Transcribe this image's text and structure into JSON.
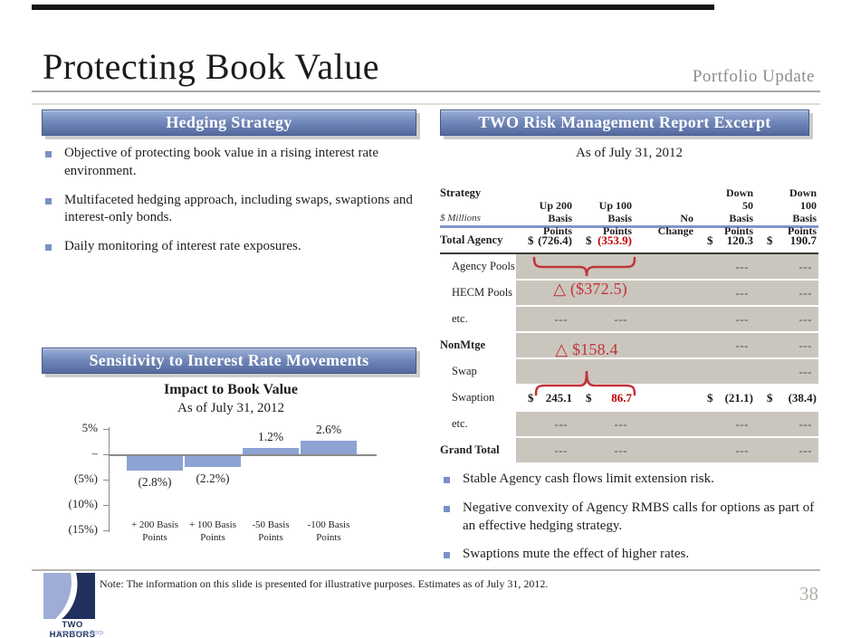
{
  "header": {
    "title": "Protecting Book Value",
    "subtitle": "Portfolio Update",
    "page_number": "38"
  },
  "left_panel": {
    "banner": "Hedging Strategy",
    "bullets": [
      "Objective of protecting book value in a rising interest rate environment.",
      "Multifaceted hedging approach, including swaps, swaptions and interest-only bonds.",
      "Daily monitoring of interest rate exposures."
    ],
    "chart_banner": "Sensitivity to Interest Rate Movements"
  },
  "chart_data": {
    "type": "bar",
    "title": "Impact to Book Value",
    "subtitle": "As of July 31, 2012",
    "categories": [
      "+ 200 Basis\nPoints",
      "+ 100 Basis\nPoints",
      "-50 Basis\nPoints",
      "-100 Basis\nPoints"
    ],
    "values": [
      -2.8,
      -2.2,
      1.2,
      2.6
    ],
    "value_labels": [
      "(2.8%)",
      "(2.2%)",
      "1.2%",
      "2.6%"
    ],
    "ytick_labels": [
      "5%",
      "–",
      "(5%)",
      "(10%)",
      "(15%)"
    ],
    "ytick_values": [
      5,
      0,
      -5,
      -10,
      -15
    ],
    "ylim": [
      -15,
      5
    ],
    "xlabel": "",
    "ylabel": "",
    "grid": false,
    "legend": false,
    "bar_color": "#8da3d3"
  },
  "right_panel": {
    "banner": "TWO Risk Management Report Excerpt",
    "as_of": "As of July 31, 2012",
    "table": {
      "corner_title": "Strategy",
      "corner_subtitle": "$ Millions",
      "columns": [
        "Up 200\nBasis\nPoints",
        "Up 100\nBasis\nPoints",
        "No\nChange",
        "Down\n50\nBasis\nPoints",
        "Down\n100\nBasis\nPoints"
      ],
      "rows": [
        {
          "label": "Total Agency",
          "style": "bold",
          "shaded": false,
          "dark_underline": true,
          "cells": [
            {
              "d": "$",
              "v": "(726.4)"
            },
            {
              "d": "$",
              "v": "(353.9)",
              "red": true
            },
            {},
            {
              "d": "$",
              "v": "120.3"
            },
            {
              "d": "$",
              "v": "190.7"
            }
          ]
        },
        {
          "label": "Agency Pools",
          "style": "indent",
          "shaded": true,
          "cells": [
            {},
            {},
            {},
            {
              "v": "---"
            },
            {
              "v": "---"
            }
          ]
        },
        {
          "label": "HECM Pools",
          "style": "indent",
          "shaded": true,
          "cells": [
            {},
            {},
            {},
            {
              "v": "---"
            },
            {
              "v": "---"
            }
          ]
        },
        {
          "label": "etc.",
          "style": "indent",
          "shaded": true,
          "cells": [
            {
              "v": "---"
            },
            {
              "v": "---"
            },
            {},
            {
              "v": "---"
            },
            {
              "v": "---"
            }
          ]
        },
        {
          "label": "NonMtge",
          "style": "bold",
          "shaded": true,
          "cells": [
            {},
            {},
            {},
            {
              "v": "---"
            },
            {
              "v": "---"
            }
          ]
        },
        {
          "label": "Swap",
          "style": "indent",
          "shaded": true,
          "cells": [
            {},
            {},
            {},
            {},
            {
              "v": "---"
            }
          ]
        },
        {
          "label": "Swaption",
          "style": "indent",
          "shaded": false,
          "cells": [
            {
              "d": "$",
              "v": "245.1"
            },
            {
              "d": "$",
              "v": "86.7",
              "red": true
            },
            {},
            {
              "d": "$",
              "v": "(21.1)"
            },
            {
              "d": "$",
              "v": "(38.4)"
            }
          ]
        },
        {
          "label": "etc.",
          "style": "indent",
          "shaded": true,
          "cells": [
            {
              "v": "---"
            },
            {
              "v": "---"
            },
            {},
            {
              "v": "---"
            },
            {
              "v": "---"
            }
          ]
        },
        {
          "label": "Grand Total",
          "style": "bold",
          "shaded": true,
          "cells": [
            {
              "v": "---"
            },
            {
              "v": "---"
            },
            {},
            {
              "v": "---"
            },
            {
              "v": "---"
            }
          ]
        }
      ]
    },
    "annotations": [
      {
        "text": "△ ($372.5)"
      },
      {
        "text": "△ $158.4"
      }
    ],
    "bullets": [
      "Stable Agency cash flows limit extension risk.",
      "Negative convexity of Agency RMBS calls for options as part of an effective hedging strategy.",
      "Swaptions mute the effect of higher rates."
    ]
  },
  "footer": {
    "note": "Note:  The information on this slide is presented for illustrative purposes. Estimates as of July 31, 2012.",
    "logo_name": "TWO HARBORS",
    "logo_subtitle": "Investment Corp."
  },
  "colors": {
    "banner_blue_top": "#9db0d8",
    "banner_blue_bottom": "#546a9e",
    "accent_red": "#c00000",
    "annotation_red": "#c2343b",
    "table_shade": "#cbc6bd",
    "rule_blue": "#8096c8",
    "bar_blue": "#8da3d3"
  }
}
